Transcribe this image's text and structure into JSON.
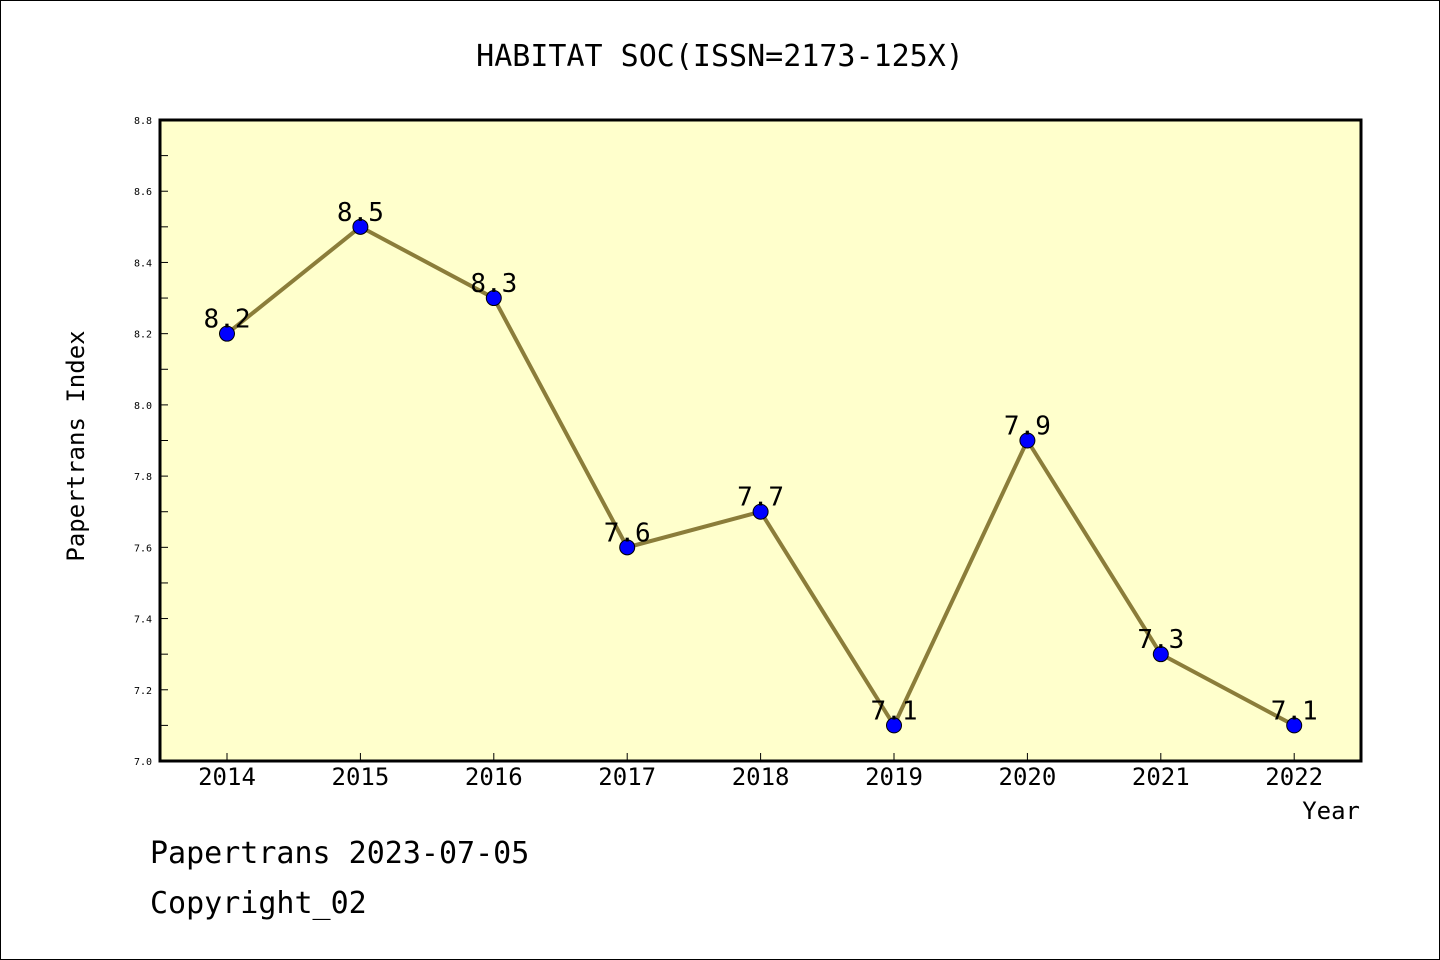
{
  "chart_data": {
    "type": "line",
    "title": "HABITAT SOC(ISSN=2173-125X)",
    "xlabel": "Year",
    "ylabel": "Papertrans Index",
    "categories": [
      "2014",
      "2015",
      "2016",
      "2017",
      "2018",
      "2019",
      "2020",
      "2021",
      "2022"
    ],
    "series": [
      {
        "values": [
          8.2,
          8.5,
          8.3,
          7.6,
          7.7,
          7.1,
          7.9,
          7.3,
          7.1
        ]
      }
    ],
    "data_labels": [
      "8.2",
      "8.5",
      "8.3",
      "7.6",
      "7.7",
      "7.1",
      "7.9",
      "7.3",
      "7.1"
    ],
    "ylim": [
      7.0,
      8.8
    ],
    "yticks": [
      "7.0",
      "7.2",
      "7.4",
      "7.6",
      "7.8",
      "8.0",
      "8.2",
      "8.4",
      "8.6",
      "8.8"
    ],
    "grid": false,
    "colors": {
      "plot_background": "#FFFFCC",
      "line": "#8B7D3A",
      "marker": "#0000FF"
    }
  },
  "footer": {
    "line1": "Papertrans 2023-07-05",
    "line2": "Copyright_02"
  }
}
